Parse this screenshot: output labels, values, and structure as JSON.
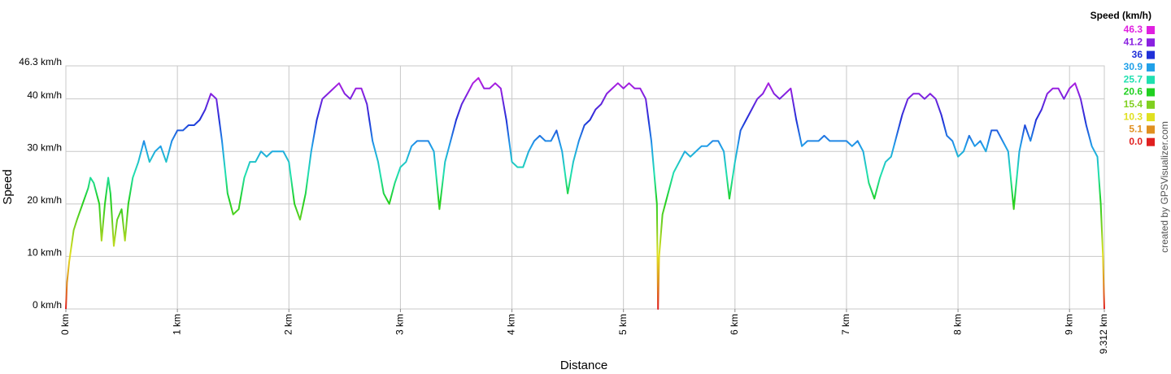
{
  "chart_data": {
    "type": "line",
    "xlabel": "Distance",
    "ylabel": "Speed",
    "watermark": "created by GPSVisualizer.com",
    "grid": true,
    "xlim": [
      0,
      9.312
    ],
    "ylim": [
      0,
      46.3
    ],
    "xticks": [
      {
        "value": 0,
        "label": "0 km"
      },
      {
        "value": 1,
        "label": "1 km"
      },
      {
        "value": 2,
        "label": "2 km"
      },
      {
        "value": 3,
        "label": "3 km"
      },
      {
        "value": 4,
        "label": "4 km"
      },
      {
        "value": 5,
        "label": "5 km"
      },
      {
        "value": 6,
        "label": "6 km"
      },
      {
        "value": 7,
        "label": "7 km"
      },
      {
        "value": 8,
        "label": "8 km"
      },
      {
        "value": 9,
        "label": "9 km"
      },
      {
        "value": 9.312,
        "label": "9.312 km"
      }
    ],
    "yticks": [
      {
        "value": 0,
        "label": "0 km/h"
      },
      {
        "value": 10,
        "label": "10 km/h"
      },
      {
        "value": 20,
        "label": "20 km/h"
      },
      {
        "value": 30,
        "label": "30 km/h"
      },
      {
        "value": 40,
        "label": "40 km/h"
      },
      {
        "value": 46.3,
        "label": "46.3 km/h"
      }
    ],
    "color_scale": {
      "title": "Speed (km/h)",
      "stops": [
        {
          "value": 46.3,
          "color": "#e020e0"
        },
        {
          "value": 41.2,
          "color": "#8a20e0"
        },
        {
          "value": 36.0,
          "color": "#2030d8"
        },
        {
          "value": 30.9,
          "color": "#20a0e8"
        },
        {
          "value": 25.7,
          "color": "#20e0b0"
        },
        {
          "value": 20.6,
          "color": "#20d020"
        },
        {
          "value": 15.4,
          "color": "#80d020"
        },
        {
          "value": 10.3,
          "color": "#e0e020"
        },
        {
          "value": 5.1,
          "color": "#e09020"
        },
        {
          "value": 0,
          "label": "0.0",
          "color": "#e02020"
        }
      ]
    },
    "x": [
      0,
      0.01,
      0.03,
      0.07,
      0.1,
      0.15,
      0.2,
      0.22,
      0.25,
      0.3,
      0.32,
      0.35,
      0.38,
      0.4,
      0.43,
      0.46,
      0.5,
      0.53,
      0.56,
      0.6,
      0.65,
      0.7,
      0.75,
      0.8,
      0.85,
      0.9,
      0.95,
      1.0,
      1.05,
      1.1,
      1.15,
      1.2,
      1.25,
      1.3,
      1.35,
      1.4,
      1.45,
      1.5,
      1.55,
      1.6,
      1.65,
      1.7,
      1.75,
      1.8,
      1.85,
      1.9,
      1.95,
      2.0,
      2.05,
      2.1,
      2.15,
      2.2,
      2.25,
      2.3,
      2.35,
      2.4,
      2.45,
      2.5,
      2.55,
      2.6,
      2.65,
      2.7,
      2.75,
      2.8,
      2.85,
      2.9,
      2.95,
      3.0,
      3.05,
      3.1,
      3.15,
      3.2,
      3.25,
      3.3,
      3.35,
      3.4,
      3.45,
      3.5,
      3.55,
      3.6,
      3.65,
      3.7,
      3.75,
      3.8,
      3.85,
      3.9,
      3.95,
      4.0,
      4.05,
      4.1,
      4.15,
      4.2,
      4.25,
      4.3,
      4.35,
      4.4,
      4.45,
      4.5,
      4.55,
      4.6,
      4.65,
      4.7,
      4.75,
      4.8,
      4.85,
      4.9,
      4.95,
      5.0,
      5.05,
      5.1,
      5.15,
      5.2,
      5.25,
      5.3,
      5.31,
      5.32,
      5.35,
      5.4,
      5.45,
      5.5,
      5.55,
      5.6,
      5.65,
      5.7,
      5.75,
      5.8,
      5.85,
      5.9,
      5.95,
      6.0,
      6.05,
      6.1,
      6.15,
      6.2,
      6.25,
      6.3,
      6.35,
      6.4,
      6.45,
      6.5,
      6.55,
      6.6,
      6.65,
      6.7,
      6.75,
      6.8,
      6.85,
      6.9,
      6.95,
      7.0,
      7.05,
      7.1,
      7.15,
      7.2,
      7.25,
      7.3,
      7.35,
      7.4,
      7.45,
      7.5,
      7.55,
      7.6,
      7.65,
      7.7,
      7.75,
      7.8,
      7.85,
      7.9,
      7.95,
      8.0,
      8.05,
      8.1,
      8.15,
      8.2,
      8.25,
      8.3,
      8.35,
      8.4,
      8.45,
      8.5,
      8.55,
      8.6,
      8.65,
      8.7,
      8.75,
      8.8,
      8.85,
      8.9,
      8.95,
      9.0,
      9.05,
      9.1,
      9.15,
      9.2,
      9.25,
      9.28,
      9.3,
      9.312
    ],
    "values": [
      0,
      5,
      9,
      15,
      17,
      20,
      23,
      25,
      24,
      20,
      13,
      20,
      25,
      22,
      12,
      17,
      19,
      13,
      20,
      25,
      28,
      32,
      28,
      30,
      31,
      28,
      32,
      34,
      34,
      35,
      35,
      36,
      38,
      41,
      40,
      32,
      22,
      18,
      19,
      25,
      28,
      28,
      30,
      29,
      30,
      30,
      30,
      28,
      20,
      17,
      22,
      30,
      36,
      40,
      41,
      42,
      43,
      41,
      40,
      42,
      42,
      39,
      32,
      28,
      22,
      20,
      24,
      27,
      28,
      31,
      32,
      32,
      32,
      30,
      19,
      28,
      32,
      36,
      39,
      41,
      43,
      44,
      42,
      42,
      43,
      42,
      36,
      28,
      27,
      27,
      30,
      32,
      33,
      32,
      32,
      34,
      30,
      22,
      28,
      32,
      35,
      36,
      38,
      39,
      41,
      42,
      43,
      42,
      43,
      42,
      42,
      40,
      32,
      20,
      0,
      10,
      18,
      22,
      26,
      28,
      30,
      29,
      30,
      31,
      31,
      32,
      32,
      30,
      21,
      28,
      34,
      36,
      38,
      40,
      41,
      43,
      41,
      40,
      41,
      42,
      36,
      31,
      32,
      32,
      32,
      33,
      32,
      32,
      32,
      32,
      31,
      32,
      30,
      24,
      21,
      25,
      28,
      29,
      33,
      37,
      40,
      41,
      41,
      40,
      41,
      40,
      37,
      33,
      32,
      29,
      30,
      33,
      31,
      32,
      30,
      34,
      34,
      32,
      30,
      19,
      30,
      35,
      32,
      36,
      38,
      41,
      42,
      42,
      40,
      42,
      43,
      40,
      35,
      31,
      29,
      20,
      10,
      0
    ]
  }
}
